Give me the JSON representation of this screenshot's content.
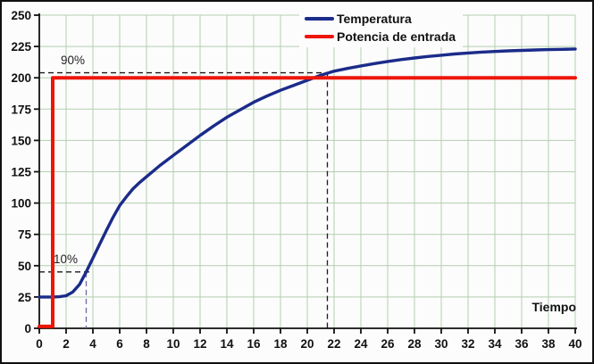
{
  "frame": {
    "background": "#fcfcfc",
    "border_color": "#111111"
  },
  "chart_data": {
    "type": "line",
    "title": "",
    "xlabel": "Tiempo",
    "ylabel": "",
    "xlim": [
      0,
      40
    ],
    "ylim": [
      0,
      250
    ],
    "x_ticks": [
      0,
      2,
      4,
      6,
      8,
      10,
      12,
      14,
      16,
      18,
      20,
      22,
      24,
      26,
      28,
      30,
      32,
      34,
      36,
      38,
      40
    ],
    "y_ticks": [
      0,
      25,
      50,
      75,
      100,
      125,
      150,
      175,
      200,
      225,
      250
    ],
    "grid": true,
    "grid_color": "#b4cfb0",
    "axis_color": "#111111",
    "tick_label_color": "#111111",
    "legend_position": "top-center-inside",
    "series": [
      {
        "name": "Temperatura",
        "color": "#1b2b8a",
        "width": 3.4,
        "x": [
          0,
          0.5,
          1,
          1.5,
          2,
          2.5,
          3,
          3.5,
          4,
          4.5,
          5,
          5.5,
          6,
          6.5,
          7,
          7.5,
          8,
          8.5,
          9,
          9.5,
          10,
          11,
          12,
          13,
          14,
          15,
          16,
          17,
          18,
          19,
          20,
          21,
          22,
          23,
          24,
          25,
          26,
          27,
          28,
          29,
          30,
          31,
          32,
          33,
          34,
          35,
          36,
          37,
          38,
          39,
          40
        ],
        "y": [
          25,
          25,
          25,
          25.2,
          26,
          29,
          35,
          45,
          56,
          67,
          78,
          88.5,
          98,
          105,
          111.5,
          116.5,
          121,
          125.5,
          130,
          134,
          138,
          146,
          154,
          161.5,
          168.5,
          174.5,
          180.5,
          185.5,
          190,
          194,
          198,
          202,
          205.3,
          207.5,
          209.5,
          211.3,
          213,
          214.5,
          215.8,
          217,
          218,
          219,
          219.8,
          220.5,
          221,
          221.5,
          221.9,
          222.2,
          222.5,
          222.7,
          223
        ]
      },
      {
        "name": "Potencia de entrada",
        "color": "#ee1507",
        "width": 4,
        "x": [
          0,
          1,
          1,
          40
        ],
        "y": [
          1.5,
          1.5,
          200,
          200
        ]
      }
    ],
    "annotations": [
      {
        "label": "90%",
        "y_value": 204,
        "x_cross": 21.5,
        "hline_color": "#1a1a1a",
        "vline_color": "#1a1a1a"
      },
      {
        "label": "10%",
        "y_value": 45,
        "x_cross": 3.5,
        "hline_color": "#1a1a1a",
        "vline_color": "#6b6b9b"
      }
    ]
  }
}
